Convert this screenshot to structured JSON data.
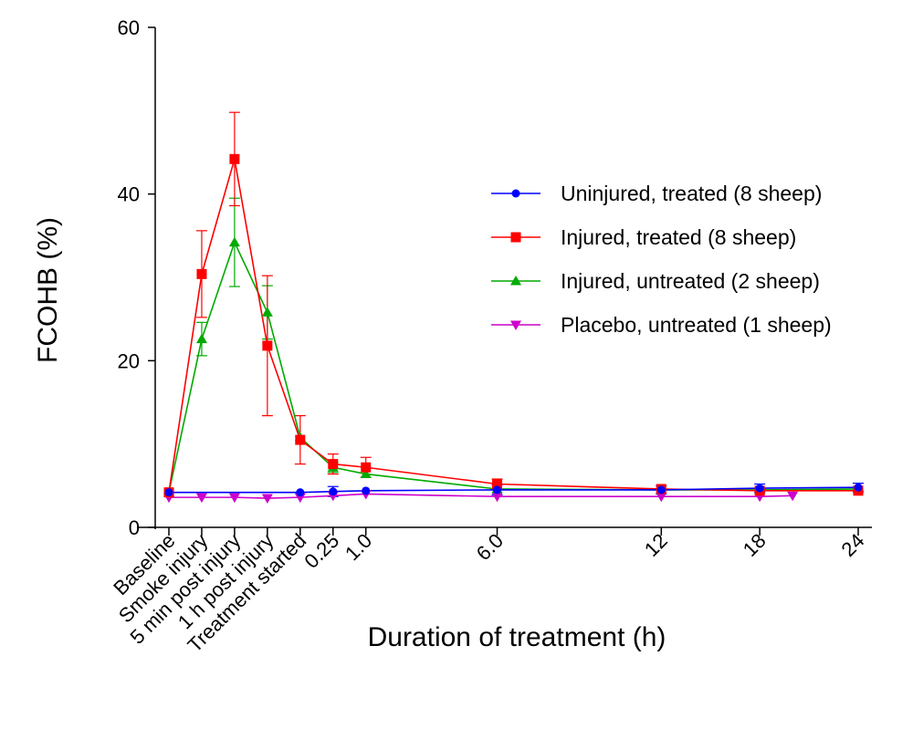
{
  "chart_data": {
    "type": "line",
    "xlabel": "Duration of treatment (h)",
    "ylabel": "FCOHB (%)",
    "ylim": [
      0,
      60
    ],
    "yticks": [
      0,
      20,
      40,
      60
    ],
    "categories": [
      "Baseline",
      "Smoke injury",
      "5 min post injury",
      "1 h post injury",
      "Treatment started",
      "0.25",
      "1.0",
      "6.0",
      "12",
      "18",
      "24"
    ],
    "x_positions": [
      0,
      1,
      2,
      3,
      4,
      5,
      6,
      10,
      15,
      18,
      21
    ],
    "legend_position": "right",
    "series": [
      {
        "name": "Uninjured, treated (8 sheep)",
        "color": "#0000ff",
        "marker": "circle",
        "points": [
          {
            "x": 0,
            "y": 4.2
          },
          {
            "x": 4,
            "y": 4.2
          },
          {
            "x": 5,
            "y": 4.3,
            "err": 0.6
          },
          {
            "x": 6,
            "y": 4.4
          },
          {
            "x": 10,
            "y": 4.5,
            "err": 0.6
          },
          {
            "x": 15,
            "y": 4.5,
            "err": 0.5
          },
          {
            "x": 18,
            "y": 4.7,
            "err": 0.5
          },
          {
            "x": 21,
            "y": 4.8,
            "err": 0.5
          }
        ]
      },
      {
        "name": "Injured, treated (8 sheep)",
        "color": "#ff0000",
        "marker": "square",
        "points": [
          {
            "x": 0,
            "y": 4.2
          },
          {
            "x": 1,
            "y": 30.4,
            "err": 5.2
          },
          {
            "x": 2,
            "y": 44.2,
            "err": 5.6
          },
          {
            "x": 3,
            "y": 21.8,
            "err": 8.4
          },
          {
            "x": 4,
            "y": 10.5,
            "err": 2.9
          },
          {
            "x": 5,
            "y": 7.6,
            "err": 1.2
          },
          {
            "x": 6,
            "y": 7.2,
            "err": 1.2
          },
          {
            "x": 10,
            "y": 5.2,
            "err": 0.6
          },
          {
            "x": 15,
            "y": 4.6
          },
          {
            "x": 18,
            "y": 4.4
          },
          {
            "x": 21,
            "y": 4.4
          }
        ]
      },
      {
        "name": "Injured, untreated (2 sheep)",
        "color": "#00aa00",
        "marker": "triangle-up",
        "points": [
          {
            "x": 0,
            "y": 4.2
          },
          {
            "x": 1,
            "y": 22.6,
            "err": 2.0
          },
          {
            "x": 2,
            "y": 34.2,
            "err": 5.3
          },
          {
            "x": 3,
            "y": 25.8,
            "err": 3.2
          },
          {
            "x": 4,
            "y": 10.8
          },
          {
            "x": 5,
            "y": 7.2,
            "err": 0.6
          },
          {
            "x": 6,
            "y": 6.4
          },
          {
            "x": 10,
            "y": 4.6
          },
          {
            "x": 15,
            "y": 4.5
          },
          {
            "x": 18,
            "y": 4.5
          },
          {
            "x": 21,
            "y": 4.6
          }
        ]
      },
      {
        "name": "Placebo, untreated (1 sheep)",
        "color": "#cc00cc",
        "marker": "triangle-down",
        "points": [
          {
            "x": 0,
            "y": 3.6
          },
          {
            "x": 1,
            "y": 3.6
          },
          {
            "x": 2,
            "y": 3.6
          },
          {
            "x": 3,
            "y": 3.5
          },
          {
            "x": 4,
            "y": 3.6
          },
          {
            "x": 5,
            "y": 3.8
          },
          {
            "x": 6,
            "y": 4.0
          },
          {
            "x": 10,
            "y": 3.7
          },
          {
            "x": 15,
            "y": 3.7
          },
          {
            "x": 18,
            "y": 3.7
          },
          {
            "x": 19,
            "y": 3.8
          }
        ]
      }
    ]
  }
}
